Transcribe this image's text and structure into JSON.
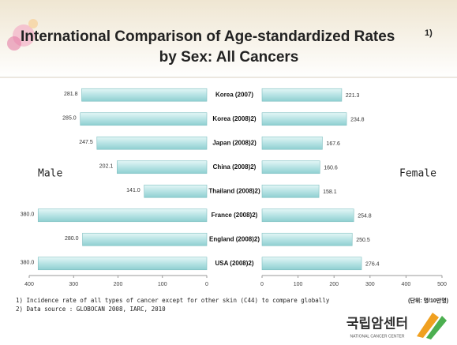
{
  "chart_data": {
    "type": "butterfly",
    "title": "International Comparison of Age-standardized Rates",
    "title_note": "1)",
    "subtitle": "by Sex: All Cancers",
    "categories": [
      "Korea (2007)",
      "Korea (2008)2)",
      "Japan (2008)2)",
      "China (2008)2)",
      "Thailand (2008)2)",
      "France (2008)2)",
      "England (2008)2)",
      "USA (2008)2)"
    ],
    "series": [
      {
        "name": "Male",
        "color": "#b7e3e4",
        "values": [
          281.8,
          285.0,
          247.5,
          202.1,
          141.0,
          380.0,
          280.0,
          380.0
        ],
        "value_labels": [
          "281.8",
          "285.0",
          "247.5",
          "202.1",
          "141.0",
          "380.0",
          "280.0",
          "380.0"
        ]
      },
      {
        "name": "Female",
        "color": "#b7e3e4",
        "values": [
          221.3,
          234.8,
          167.6,
          160.6,
          158.1,
          254.8,
          250.5,
          276.4
        ],
        "value_labels": [
          "221.3",
          "234.8",
          "167.6",
          "160.6",
          "158.1",
          "254.8",
          "250.5",
          "276.4"
        ]
      }
    ],
    "xlim": [
      0,
      400
    ],
    "xticks": [
      400,
      300,
      200,
      100,
      0
    ],
    "x2lim": [
      0,
      500
    ],
    "x2ticks": [
      0,
      100,
      200,
      300,
      400,
      500
    ],
    "footnotes": [
      "1) Incidence rate of all types of cancer except for other skin (C44) to compare globally",
      "2) Data source : GLOBOCAN 2008, IARC, 2010"
    ],
    "unit": "(단위: 명/10만명)",
    "logo": "국립암센터",
    "logo_sub": "NATIONAL CANCER CENTER"
  }
}
